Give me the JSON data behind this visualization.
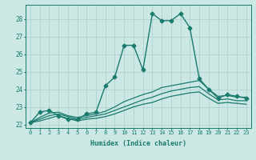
{
  "xlabel": "Humidex (Indice chaleur)",
  "ylabel": "",
  "bg_color": "#cce8e4",
  "line_color": "#1a7a6e",
  "grid_color": "#aacfcb",
  "xlim": [
    -0.5,
    23.5
  ],
  "ylim": [
    21.8,
    28.8
  ],
  "yticks": [
    22,
    23,
    24,
    25,
    26,
    27,
    28
  ],
  "xticks": [
    0,
    1,
    2,
    3,
    4,
    5,
    6,
    7,
    8,
    9,
    10,
    11,
    12,
    13,
    14,
    15,
    16,
    17,
    18,
    19,
    20,
    21,
    22,
    23
  ],
  "series": [
    {
      "x": [
        0,
        1,
        2,
        3,
        4,
        5,
        6,
        7,
        8,
        9,
        10,
        11,
        12,
        13,
        14,
        15,
        16,
        17,
        18,
        19,
        20,
        21,
        22,
        23
      ],
      "y": [
        22.1,
        22.7,
        22.8,
        22.5,
        22.3,
        22.3,
        22.6,
        22.7,
        24.2,
        24.7,
        26.5,
        26.5,
        25.1,
        28.3,
        27.9,
        27.9,
        28.3,
        27.5,
        24.6,
        24.0,
        23.5,
        23.7,
        23.6,
        23.5
      ],
      "marker": "D",
      "markersize": 2.5,
      "linewidth": 1.0
    },
    {
      "x": [
        0,
        1,
        2,
        3,
        4,
        5,
        6,
        7,
        8,
        9,
        10,
        11,
        12,
        13,
        14,
        15,
        16,
        17,
        18,
        19,
        20,
        21,
        22,
        23
      ],
      "y": [
        22.1,
        22.4,
        22.65,
        22.7,
        22.5,
        22.4,
        22.5,
        22.6,
        22.75,
        23.0,
        23.3,
        23.5,
        23.7,
        23.85,
        24.1,
        24.2,
        24.3,
        24.4,
        24.5,
        24.0,
        23.6,
        23.65,
        23.55,
        23.55
      ],
      "marker": "",
      "markersize": 0,
      "linewidth": 0.9
    },
    {
      "x": [
        0,
        1,
        2,
        3,
        4,
        5,
        6,
        7,
        8,
        9,
        10,
        11,
        12,
        13,
        14,
        15,
        16,
        17,
        18,
        19,
        20,
        21,
        22,
        23
      ],
      "y": [
        22.1,
        22.3,
        22.5,
        22.6,
        22.45,
        22.3,
        22.4,
        22.5,
        22.6,
        22.8,
        23.0,
        23.2,
        23.4,
        23.55,
        23.75,
        23.9,
        24.0,
        24.1,
        24.15,
        23.75,
        23.4,
        23.45,
        23.35,
        23.35
      ],
      "marker": "",
      "markersize": 0,
      "linewidth": 0.9
    },
    {
      "x": [
        0,
        1,
        2,
        3,
        4,
        5,
        6,
        7,
        8,
        9,
        10,
        11,
        12,
        13,
        14,
        15,
        16,
        17,
        18,
        19,
        20,
        21,
        22,
        23
      ],
      "y": [
        22.1,
        22.2,
        22.35,
        22.5,
        22.35,
        22.2,
        22.3,
        22.35,
        22.45,
        22.6,
        22.8,
        23.0,
        23.15,
        23.25,
        23.45,
        23.6,
        23.7,
        23.8,
        23.85,
        23.5,
        23.2,
        23.25,
        23.2,
        23.15
      ],
      "marker": "",
      "markersize": 0,
      "linewidth": 0.9
    }
  ]
}
